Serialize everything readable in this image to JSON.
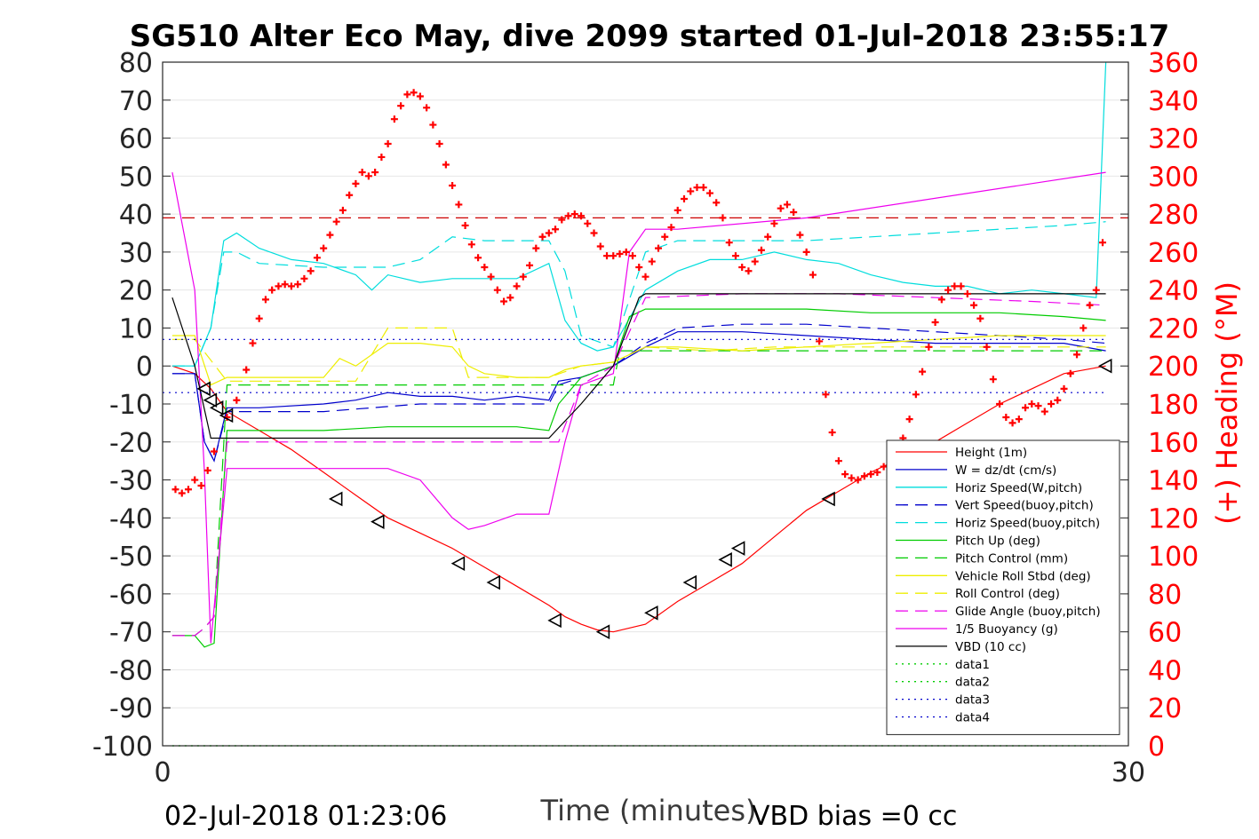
{
  "chart_data": {
    "type": "line",
    "title": "SG510 Alter Eco May, dive 2099 started 01-Jul-2018 23:55:17",
    "xlabel": "Time (minutes)",
    "ylabel_right": "(+) Heading (°M)",
    "xlim": [
      0,
      30
    ],
    "ylim": [
      -100,
      80
    ],
    "ylim_right": [
      0,
      360
    ],
    "x_ticks": [
      0,
      30
    ],
    "y_ticks": [
      80,
      70,
      60,
      50,
      40,
      30,
      20,
      10,
      0,
      -10,
      -20,
      -30,
      -40,
      -50,
      -60,
      -70,
      -80,
      -90,
      -100
    ],
    "y_ticks_right": [
      360,
      340,
      320,
      300,
      280,
      260,
      240,
      220,
      200,
      180,
      160,
      140,
      120,
      100,
      80,
      60,
      40,
      20,
      0
    ],
    "grid": true,
    "legend_position": "bottom-right",
    "footer_left": "02-Jul-2018 01:23:06",
    "footer_right": "VBD bias =0 cc",
    "colors": {
      "heading": "#ff0000",
      "right_axis": "#ff0000"
    },
    "series": [
      {
        "name": "Height (1m)",
        "color": "#ff0000",
        "style": "solid",
        "x": [
          0.3,
          1.0,
          1.5,
          2.0,
          3.0,
          4.0,
          5.0,
          6.0,
          7.0,
          8.0,
          9.0,
          10.0,
          11.0,
          12.0,
          12.5,
          13.0,
          13.5,
          14.0,
          15.0,
          16.0,
          17.0,
          18.0,
          19.0,
          20.0,
          21.0,
          22.0,
          23.0,
          24.0,
          25.0,
          26.0,
          27.0,
          28.0,
          29.3
        ],
        "y": [
          0,
          -2,
          -6,
          -12,
          -17,
          -22,
          -28,
          -34,
          -40,
          -44,
          -48,
          -53,
          -58,
          -63,
          -66,
          -68,
          -69.5,
          -70,
          -68,
          -62,
          -57,
          -52,
          -45,
          -38,
          -33,
          -28,
          -24,
          -20,
          -15,
          -10,
          -6,
          -2,
          0
        ]
      },
      {
        "name": "W = dz/dt (cm/s)",
        "color": "#0000cc",
        "style": "solid",
        "x": [
          0.3,
          1.0,
          1.3,
          1.6,
          2.0,
          3.0,
          5.0,
          6.0,
          7.0,
          8.0,
          9.0,
          10.0,
          11.0,
          12.0,
          12.3,
          13.0,
          14.0,
          15.0,
          16.0,
          18.0,
          20.0,
          22.0,
          24.0,
          26.0,
          28.0,
          29.3
        ],
        "y": [
          -2,
          -2,
          -20,
          -25,
          -11,
          -11,
          -10,
          -9,
          -7,
          -8,
          -8,
          -9,
          -8,
          -9,
          -4,
          -3,
          0,
          5,
          9,
          9,
          8,
          7,
          6,
          6,
          6,
          4
        ]
      },
      {
        "name": "Horiz Speed(W,pitch)",
        "color": "#00dddd",
        "style": "solid",
        "x": [
          0.3,
          1.0,
          1.5,
          1.9,
          2.3,
          3.0,
          4.0,
          5.0,
          6.0,
          6.5,
          7.0,
          8.0,
          9.0,
          10.0,
          11.0,
          12.0,
          12.5,
          13.0,
          13.5,
          14.0,
          15.0,
          16.0,
          17.0,
          18.0,
          19.0,
          20.0,
          21.0,
          22.0,
          23.0,
          24.0,
          25.0,
          26.0,
          27.0,
          28.0,
          29.0,
          29.3
        ],
        "y": [
          0,
          0,
          10,
          33,
          35,
          31,
          28,
          27,
          24,
          20,
          24,
          22,
          23,
          23,
          23,
          27,
          12,
          6,
          4,
          5,
          20,
          25,
          28,
          28,
          30,
          28,
          27,
          24,
          22,
          21,
          21,
          19,
          20,
          19,
          18,
          80
        ]
      },
      {
        "name": "Vert Speed(buoy,pitch)",
        "color": "#0000cc",
        "style": "dash",
        "x": [
          0.3,
          1.0,
          1.3,
          1.6,
          2.0,
          3.0,
          5.0,
          8.0,
          10.0,
          12.0,
          12.3,
          13.0,
          14.0,
          15.0,
          16.0,
          18.0,
          20.0,
          22.0,
          24.0,
          26.0,
          28.0,
          29.3
        ],
        "y": [
          -2,
          -2,
          -20,
          -25,
          -12,
          -12,
          -12,
          -10,
          -10,
          -10,
          -5,
          -3,
          0,
          6,
          10,
          11,
          11,
          10,
          9,
          8,
          7,
          6
        ]
      },
      {
        "name": "Horiz Speed(buoy,pitch)",
        "color": "#00dddd",
        "style": "dash",
        "x": [
          0.3,
          1.0,
          1.5,
          1.9,
          2.3,
          3.0,
          5.0,
          7.0,
          8.0,
          9.0,
          10.0,
          11.0,
          12.0,
          12.5,
          13.0,
          14.0,
          15.0,
          16.0,
          18.0,
          20.0,
          22.0,
          24.0,
          26.0,
          28.0,
          29.3
        ],
        "y": [
          0,
          0,
          10,
          30,
          30,
          27,
          26,
          26,
          28,
          34,
          33,
          33,
          33,
          25,
          8,
          5,
          30,
          33,
          33,
          33,
          34,
          35,
          36,
          37,
          38
        ]
      },
      {
        "name": "Pitch Up (deg)",
        "color": "#00cc00",
        "style": "solid",
        "x": [
          0.3,
          1.0,
          1.3,
          1.6,
          2.0,
          3.0,
          5.0,
          7.0,
          9.0,
          11.0,
          12.0,
          12.3,
          13.0,
          14.0,
          14.5,
          15.0,
          16.0,
          18.0,
          20.0,
          22.0,
          24.0,
          26.0,
          28.0,
          29.3
        ],
        "y": [
          -71,
          -71,
          -74,
          -73,
          -17,
          -17,
          -17,
          -16,
          -16,
          -16,
          -17,
          -10,
          -3,
          0,
          13,
          15,
          15,
          15,
          15,
          14,
          14,
          14,
          13,
          12
        ]
      },
      {
        "name": "Pitch Control (mm)",
        "color": "#00cc00",
        "style": "dash",
        "x": [
          0.3,
          1.0,
          1.3,
          1.6,
          2.0,
          3.0,
          6.0,
          9.0,
          12.0,
          12.3,
          13.0,
          14.0,
          14.2,
          15.0,
          18.0,
          21.0,
          24.0,
          27.0,
          29.3
        ],
        "y": [
          -71,
          -71,
          -69,
          -66,
          -5,
          -5,
          -5,
          -5,
          -5,
          -5,
          -5,
          -5,
          4,
          4,
          4,
          4,
          4,
          4,
          4
        ]
      },
      {
        "name": "Vehicle Roll Stbd (deg)",
        "color": "#eeee00",
        "style": "solid",
        "x": [
          0.3,
          1.0,
          1.5,
          2.0,
          3.0,
          5.0,
          5.5,
          6.0,
          7.0,
          8.0,
          9.0,
          9.5,
          10.0,
          11.0,
          12.0,
          12.5,
          13.0,
          14.0,
          15.0,
          16.0,
          18.0,
          20.0,
          22.0,
          24.0,
          26.0,
          28.0,
          29.3
        ],
        "y": [
          8,
          8,
          -5,
          -3,
          -3,
          -3,
          2,
          0,
          6,
          6,
          5,
          0,
          -2,
          -3,
          -3,
          -1,
          0,
          1,
          5,
          5,
          4,
          5,
          6,
          7,
          8,
          8,
          8
        ]
      },
      {
        "name": "Roll Control (deg)",
        "color": "#eeee00",
        "style": "dash",
        "x": [
          0.3,
          1.0,
          2.0,
          4.0,
          6.0,
          7.0,
          9.0,
          9.5,
          11.0,
          12.0,
          13.0,
          14.0,
          15.0,
          17.0,
          19.0,
          21.0,
          23.0,
          25.0,
          27.0,
          29.3
        ],
        "y": [
          7,
          7,
          -4,
          -4,
          -4,
          10,
          10,
          -3,
          -3,
          -3,
          0,
          1,
          5,
          4,
          5,
          5,
          5,
          5,
          5,
          5
        ]
      },
      {
        "name": "Glide Angle (buoy,pitch)",
        "color": "#ee00ee",
        "style": "dash",
        "x": [
          0.3,
          1.0,
          1.3,
          1.6,
          2.0,
          3.0,
          6.0,
          9.0,
          12.0,
          12.3,
          13.0,
          14.0,
          15.0,
          18.0,
          21.0,
          24.0,
          27.0,
          29.3
        ],
        "y": [
          -71,
          -71,
          -69,
          -66,
          -20,
          -20,
          -20,
          -20,
          -20,
          -20,
          -5,
          0,
          18,
          19,
          19,
          18,
          17,
          16
        ]
      },
      {
        "name": "1/5 Buoyancy (g)",
        "color": "#ee00ee",
        "style": "solid",
        "x": [
          0.3,
          1.0,
          1.3,
          1.5,
          2.0,
          5.0,
          7.0,
          8.0,
          9.0,
          9.5,
          10.0,
          11.0,
          12.0,
          12.5,
          13.0,
          14.0,
          14.5,
          15.0,
          16.0,
          20.0,
          29.3
        ],
        "y": [
          51,
          20,
          -28,
          -73,
          -27,
          -27,
          -27,
          -30,
          -40,
          -43,
          -42,
          -39,
          -39,
          -20,
          -5,
          -2,
          30,
          36,
          36,
          39,
          51
        ]
      },
      {
        "name": "VBD (10 cc)",
        "color": "#000000",
        "style": "solid",
        "x": [
          0.3,
          1.0,
          1.5,
          1.8,
          3.0,
          6.0,
          9.0,
          12.0,
          13.0,
          14.0,
          14.8,
          15.0,
          18.0,
          21.0,
          24.0,
          27.0,
          29.3
        ],
        "y": [
          18,
          0,
          -19,
          -19,
          -19,
          -19,
          -19,
          -19,
          -10,
          0,
          18,
          19,
          19,
          19,
          19,
          19,
          19
        ]
      },
      {
        "name": "data1",
        "color": "#00cc00",
        "style": "dot",
        "x": [
          0.3,
          29.3
        ],
        "y": [
          -100,
          -100
        ]
      },
      {
        "name": "data2",
        "color": "#00cc00",
        "style": "dot",
        "x": [
          0.3,
          29.3
        ],
        "y": [
          -100,
          -100
        ]
      },
      {
        "name": "data3",
        "color": "#0000cc",
        "style": "dot",
        "x": [
          0,
          29.3
        ],
        "y": [
          7,
          7
        ]
      },
      {
        "name": "data4",
        "color": "#0000cc",
        "style": "dot",
        "x": [
          0,
          29.3
        ],
        "y": [
          -7,
          -7
        ]
      }
    ],
    "reference_line": {
      "y": 39,
      "color": "#cc0000",
      "style": "dash"
    },
    "heading_points": {
      "x": [
        0.4,
        0.6,
        0.8,
        1.0,
        1.2,
        1.4,
        1.6,
        2.0,
        2.3,
        2.6,
        2.8,
        3.0,
        3.2,
        3.4,
        3.6,
        3.8,
        4.0,
        4.2,
        4.4,
        4.6,
        4.8,
        5.0,
        5.2,
        5.4,
        5.6,
        5.8,
        6.0,
        6.2,
        6.4,
        6.6,
        6.8,
        7.0,
        7.2,
        7.4,
        7.6,
        7.8,
        8.0,
        8.2,
        8.4,
        8.6,
        8.8,
        9.0,
        9.2,
        9.4,
        9.6,
        9.8,
        10.0,
        10.2,
        10.4,
        10.6,
        10.8,
        11.0,
        11.2,
        11.4,
        11.6,
        11.8,
        12.0,
        12.2,
        12.4,
        12.6,
        12.8,
        13.0,
        13.2,
        13.4,
        13.6,
        13.8,
        14.0,
        14.2,
        14.4,
        14.6,
        14.8,
        15.0,
        15.2,
        15.4,
        15.6,
        15.8,
        16.0,
        16.2,
        16.4,
        16.6,
        16.8,
        17.0,
        17.2,
        17.4,
        17.6,
        17.8,
        18.0,
        18.2,
        18.4,
        18.6,
        18.8,
        19.0,
        19.2,
        19.4,
        19.6,
        19.8,
        20.0,
        20.2,
        20.4,
        20.6,
        20.8,
        21.0,
        21.2,
        21.4,
        21.6,
        21.8,
        22.0,
        22.2,
        22.4,
        22.6,
        22.8,
        23.0,
        23.2,
        23.4,
        23.6,
        23.8,
        24.0,
        24.2,
        24.4,
        24.6,
        24.8,
        25.0,
        25.2,
        25.4,
        25.6,
        25.8,
        26.0,
        26.2,
        26.4,
        26.6,
        26.8,
        27.0,
        27.2,
        27.4,
        27.6,
        27.8,
        28.0,
        28.2,
        28.4,
        28.6,
        28.8,
        29.0,
        29.2
      ],
      "y": [
        135,
        133,
        135,
        140,
        137,
        145,
        155,
        173,
        182,
        198,
        212,
        225,
        235,
        240,
        242,
        243,
        242,
        243,
        246,
        250,
        257,
        262,
        269,
        276,
        282,
        290,
        296,
        302,
        300,
        302,
        310,
        317,
        330,
        337,
        343,
        344,
        342,
        336,
        327,
        317,
        306,
        295,
        285,
        274,
        264,
        257,
        252,
        247,
        240,
        234,
        236,
        242,
        247,
        253,
        262,
        268,
        270,
        272,
        277,
        279,
        280,
        279,
        275,
        270,
        263,
        258,
        258,
        259,
        260,
        258,
        252,
        247,
        255,
        262,
        268,
        273,
        282,
        288,
        292,
        294,
        294,
        291,
        286,
        278,
        265,
        258,
        252,
        250,
        255,
        261,
        268,
        275,
        283,
        285,
        281,
        269,
        260,
        248,
        213,
        185,
        165,
        150,
        143,
        141,
        140,
        142,
        143,
        144,
        147,
        150,
        155,
        162,
        172,
        185,
        197,
        210,
        223,
        235,
        240,
        242,
        242,
        238,
        232,
        225,
        210,
        193,
        180,
        173,
        170,
        172,
        178,
        180,
        179,
        176,
        180,
        182,
        188,
        196,
        206,
        220,
        232,
        240,
        265
      ]
    },
    "triangle_markers": {
      "x": [
        1.3,
        1.5,
        1.7,
        2.0,
        5.4,
        6.7,
        9.2,
        10.3,
        12.2,
        13.7,
        15.2,
        16.4,
        17.5,
        17.9,
        20.7,
        29.3
      ],
      "y": [
        -6,
        -9,
        -11,
        -13,
        -35,
        -41,
        -52,
        -57,
        -67,
        -70,
        -65,
        -57,
        -51,
        -48,
        -35,
        0
      ]
    }
  }
}
